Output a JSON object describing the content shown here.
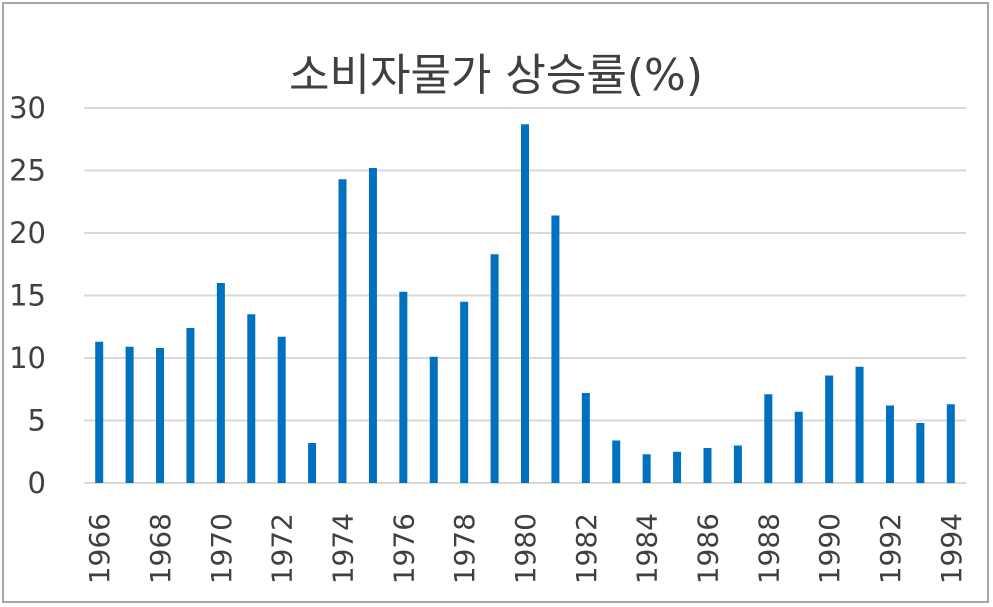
{
  "chart_data": {
    "type": "bar",
    "title": "소비자물가 상승률(%)",
    "xlabel": "",
    "ylabel": "",
    "ylim": [
      0,
      30
    ],
    "yticks": [
      "0",
      "5",
      "10",
      "15",
      "20",
      "25",
      "30"
    ],
    "grid": true,
    "legend": "none",
    "bar_color": "#0070c0",
    "categories": [
      "1966",
      "1967",
      "1968",
      "1969",
      "1970",
      "1971",
      "1972",
      "1973",
      "1974",
      "1975",
      "1976",
      "1977",
      "1978",
      "1979",
      "1980",
      "1981",
      "1982",
      "1983",
      "1984",
      "1985",
      "1986",
      "1987",
      "1988",
      "1989",
      "1990",
      "1991",
      "1992",
      "1993",
      "1994"
    ],
    "xtick_labels": [
      "1966",
      "1968",
      "1970",
      "1972",
      "1974",
      "1976",
      "1978",
      "1980",
      "1982",
      "1984",
      "1986",
      "1988",
      "1990",
      "1992",
      "1994"
    ],
    "values": [
      11.3,
      10.9,
      10.8,
      12.4,
      16.0,
      13.5,
      11.7,
      3.2,
      24.3,
      25.2,
      15.3,
      10.1,
      14.5,
      18.3,
      28.7,
      21.4,
      7.2,
      3.4,
      2.3,
      2.5,
      2.8,
      3.0,
      7.1,
      5.7,
      8.6,
      9.3,
      6.2,
      4.8,
      6.3
    ]
  }
}
